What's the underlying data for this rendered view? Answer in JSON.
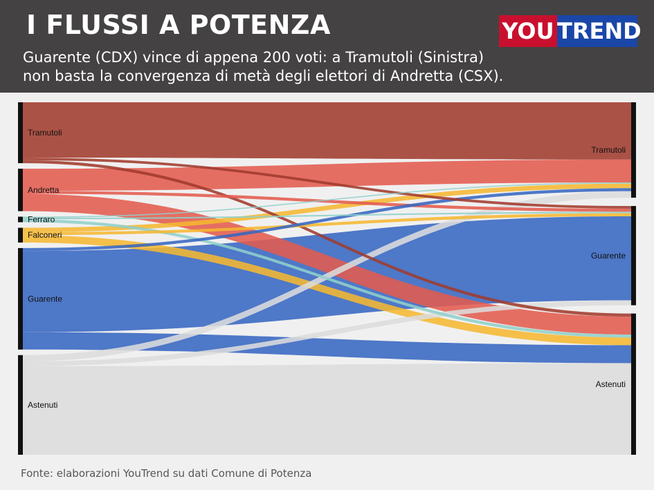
{
  "header": {
    "title": "I FLUSSI A POTENZA",
    "subtitle_line1": "Guarente (CDX) vince di appena 200 voti: a Tramutoli (Sinistra)",
    "subtitle_line2": "non basta la convergenza di metà degli elettori di Andretta (CSX).",
    "logo": {
      "part1": "YOU",
      "part2": "TREND",
      "color1": "#c8102e",
      "color2": "#1a46a8"
    }
  },
  "source": "Fonte: elaborazioni YouTrend su dati Comune di Potenza",
  "chart_data": {
    "type": "sankey",
    "left_nodes": [
      {
        "name": "Tramutoli",
        "share": 16.5,
        "color": "#a03b2e"
      },
      {
        "name": "Andretta",
        "share": 11.5,
        "color": "#e25b4e"
      },
      {
        "name": "Ferraro",
        "share": 1.5,
        "color": "#8fcfc9"
      },
      {
        "name": "Falconeri",
        "share": 4.0,
        "color": "#f5b731"
      },
      {
        "name": "Guarente",
        "share": 27.5,
        "color": "#3766c2"
      },
      {
        "name": "Astenuti",
        "share": 27.0,
        "color": "#dcdcdc"
      }
    ],
    "right_nodes": [
      {
        "name": "Tramutoli",
        "share": 25.0,
        "color": "#a03b2e"
      },
      {
        "name": "Guarente",
        "share": 26.0,
        "color": "#3766c2"
      },
      {
        "name": "Astenuti",
        "share": 37.0,
        "color": "#dcdcdc"
      }
    ],
    "flows": [
      {
        "from": "Tramutoli",
        "to": "Tramutoli",
        "value": 15.0
      },
      {
        "from": "Tramutoli",
        "to": "Guarente",
        "value": 0.7
      },
      {
        "from": "Tramutoli",
        "to": "Astenuti",
        "value": 0.8
      },
      {
        "from": "Andretta",
        "to": "Tramutoli",
        "value": 6.0
      },
      {
        "from": "Andretta",
        "to": "Guarente",
        "value": 0.8
      },
      {
        "from": "Andretta",
        "to": "Astenuti",
        "value": 4.7
      },
      {
        "from": "Ferraro",
        "to": "Tramutoli",
        "value": 0.3
      },
      {
        "from": "Ferraro",
        "to": "Guarente",
        "value": 0.4
      },
      {
        "from": "Ferraro",
        "to": "Astenuti",
        "value": 0.8
      },
      {
        "from": "Falconeri",
        "to": "Tramutoli",
        "value": 1.2
      },
      {
        "from": "Falconeri",
        "to": "Guarente",
        "value": 0.8
      },
      {
        "from": "Falconeri",
        "to": "Astenuti",
        "value": 2.0
      },
      {
        "from": "Guarente",
        "to": "Tramutoli",
        "value": 0.8
      },
      {
        "from": "Guarente",
        "to": "Guarente",
        "value": 22.0
      },
      {
        "from": "Guarente",
        "to": "Astenuti",
        "value": 4.7
      },
      {
        "from": "Astenuti",
        "to": "Tramutoli",
        "value": 1.7
      },
      {
        "from": "Astenuti",
        "to": "Guarente",
        "value": 1.3
      },
      {
        "from": "Astenuti",
        "to": "Astenuti",
        "value": 24.0
      }
    ]
  }
}
